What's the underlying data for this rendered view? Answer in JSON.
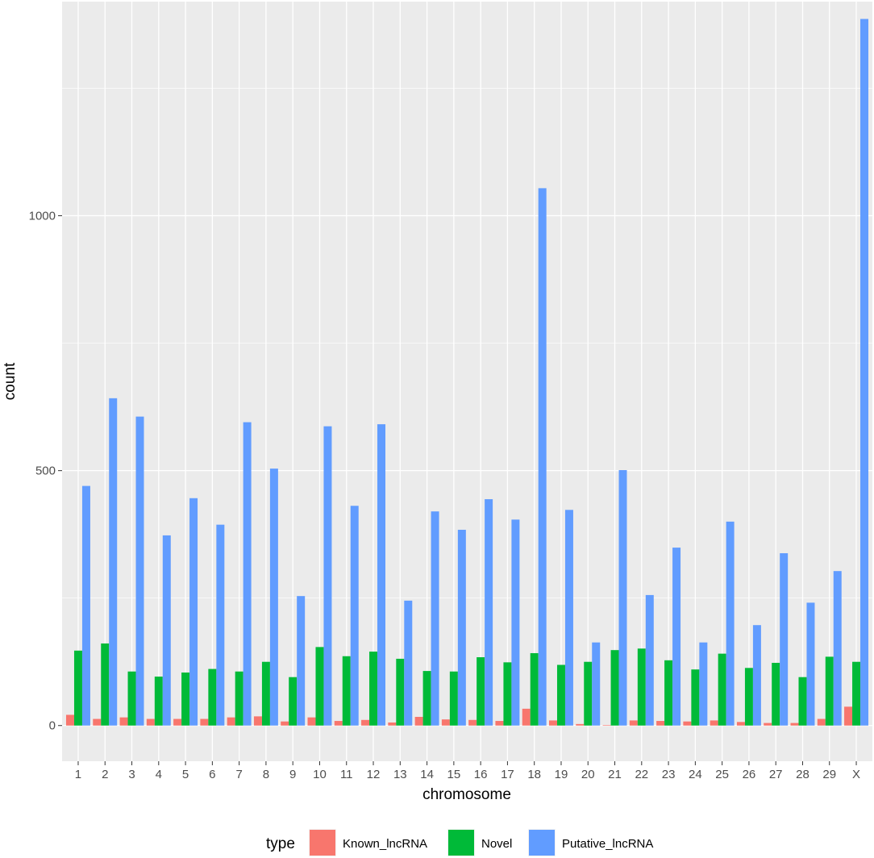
{
  "chart_data": {
    "type": "bar",
    "xlabel": "chromosome",
    "ylabel": "count",
    "ylim": [
      -70,
      1420
    ],
    "yticks": [
      0,
      500,
      1000
    ],
    "grid": true,
    "legend_position": "bottom",
    "legend_title": "type",
    "categories": [
      "1",
      "2",
      "3",
      "4",
      "5",
      "6",
      "7",
      "8",
      "9",
      "10",
      "11",
      "12",
      "13",
      "14",
      "15",
      "16",
      "17",
      "18",
      "19",
      "20",
      "21",
      "22",
      "23",
      "24",
      "25",
      "26",
      "27",
      "28",
      "29",
      "X"
    ],
    "series": [
      {
        "name": "Known_lncRNA",
        "color": "#F8766D",
        "values": [
          21,
          13,
          16,
          13,
          13,
          13,
          16,
          18,
          8,
          16,
          9,
          11,
          6,
          17,
          12,
          11,
          9,
          33,
          10,
          3,
          1,
          10,
          9,
          8,
          10,
          7,
          5,
          5,
          13,
          37
        ]
      },
      {
        "name": "Novel",
        "color": "#00BA38",
        "values": [
          147,
          161,
          106,
          96,
          104,
          111,
          106,
          125,
          95,
          154,
          136,
          145,
          131,
          107,
          106,
          134,
          124,
          142,
          119,
          125,
          148,
          151,
          128,
          110,
          141,
          113,
          123,
          95,
          135,
          125
        ]
      },
      {
        "name": "Putative_lncRNA",
        "color": "#619CFF",
        "values": [
          470,
          642,
          606,
          373,
          446,
          394,
          595,
          504,
          254,
          587,
          431,
          591,
          245,
          420,
          384,
          444,
          404,
          1054,
          423,
          163,
          501,
          256,
          349,
          163,
          400,
          197,
          338,
          241,
          303,
          1386
        ]
      }
    ]
  }
}
